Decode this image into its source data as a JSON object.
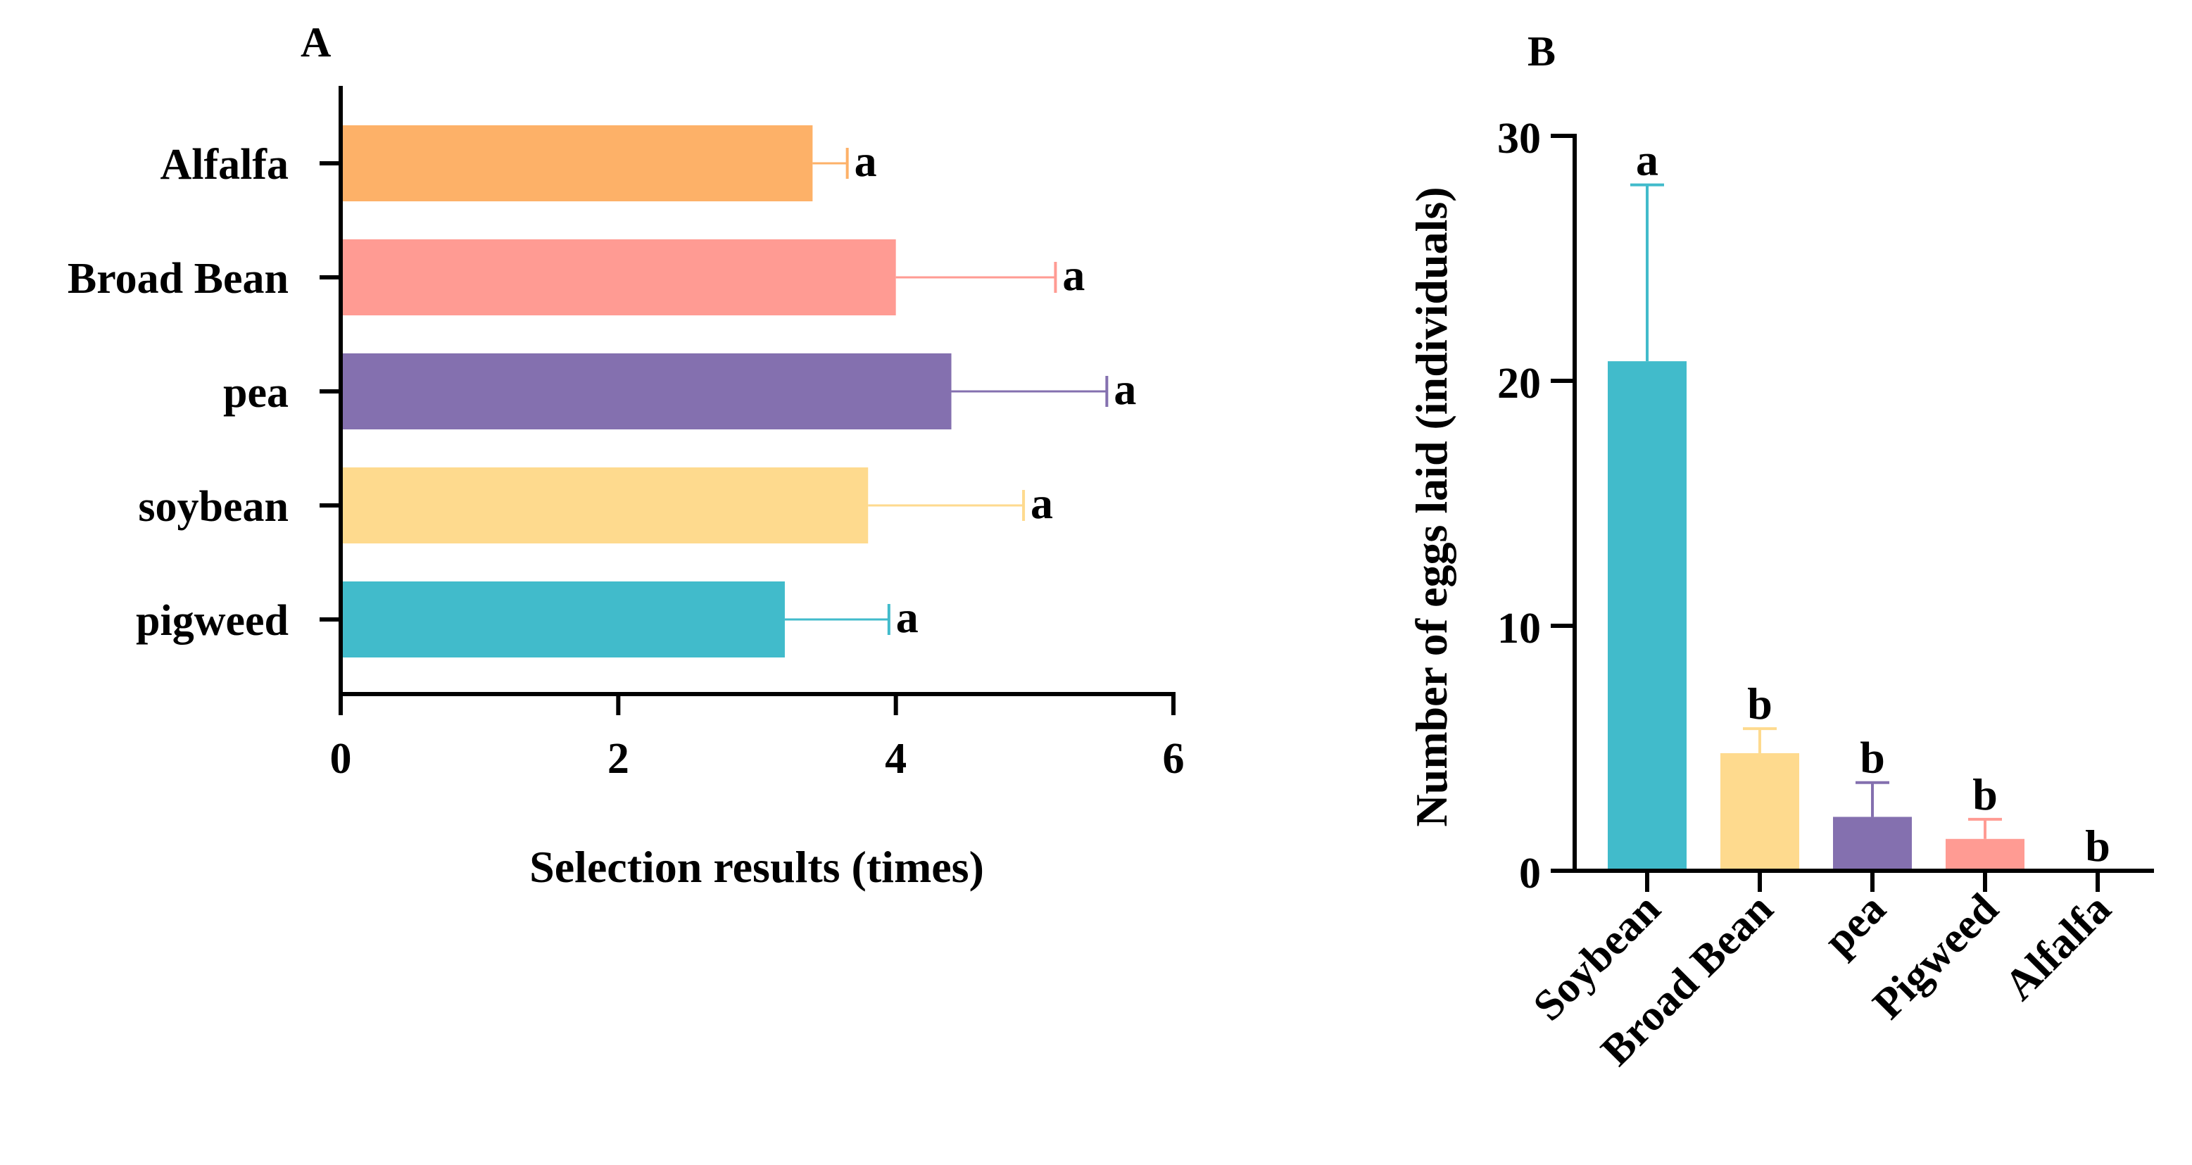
{
  "chart_data": [
    {
      "panel": "A",
      "type": "bar",
      "orientation": "horizontal",
      "categories": [
        "Alfalfa",
        "Broad Bean",
        "pea",
        "soybean",
        "pigweed"
      ],
      "values": [
        3.4,
        4.0,
        4.4,
        3.8,
        3.2
      ],
      "errors": [
        0.25,
        1.15,
        1.12,
        1.12,
        0.75
      ],
      "significance": [
        "a",
        "a",
        "a",
        "a",
        "a"
      ],
      "colors": [
        "#FDB168",
        "#FF9B93",
        "#8470AF",
        "#FEDA8E",
        "#41BBCB"
      ],
      "xlabel": "Selection results (times)",
      "ylabel": "",
      "xlim": [
        0,
        6
      ],
      "xticks": [
        0,
        2,
        4,
        6
      ],
      "grid": false
    },
    {
      "panel": "B",
      "type": "bar",
      "orientation": "vertical",
      "categories": [
        "Soybean",
        "Broad Bean",
        "pea",
        "Pigweed",
        "Alfalfa"
      ],
      "values": [
        20.8,
        4.8,
        2.2,
        1.3,
        0
      ],
      "errors": [
        7.2,
        1.0,
        1.4,
        0.8,
        0
      ],
      "significance": [
        "a",
        "b",
        "b",
        "b",
        "b"
      ],
      "colors": [
        "#41BBCB",
        "#FEDA8E",
        "#8470AF",
        "#FF9B93",
        "#FDB168"
      ],
      "xlabel": "",
      "ylabel": "Number of eggs laid (individuals)",
      "ylim": [
        0,
        30
      ],
      "yticks": [
        0,
        10,
        20,
        30
      ],
      "grid": false
    }
  ]
}
